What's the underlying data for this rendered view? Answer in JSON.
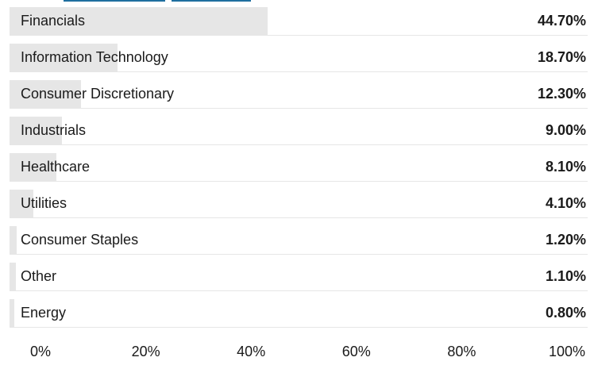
{
  "chart_data": {
    "type": "bar",
    "orientation": "horizontal",
    "categories": [
      "Financials",
      "Information Technology",
      "Consumer Discretionary",
      "Industrials",
      "Healthcare",
      "Utilities",
      "Consumer Staples",
      "Other",
      "Energy"
    ],
    "values": [
      44.7,
      18.7,
      12.3,
      9.0,
      8.1,
      4.1,
      1.2,
      1.1,
      0.8
    ],
    "value_labels": [
      "44.70%",
      "18.70%",
      "12.30%",
      "9.00%",
      "8.10%",
      "4.10%",
      "1.20%",
      "1.10%",
      "0.80%"
    ],
    "xlim": [
      0,
      100
    ],
    "x_ticks": [
      0,
      20,
      40,
      60,
      80,
      100
    ],
    "x_tick_labels": [
      "0%",
      "20%",
      "40%",
      "60%",
      "80%",
      "100%"
    ],
    "grid": false,
    "colors": {
      "bar": "#e6e6e6",
      "text": "#1a1a1a",
      "header_accent": "#1f6f9f"
    }
  }
}
